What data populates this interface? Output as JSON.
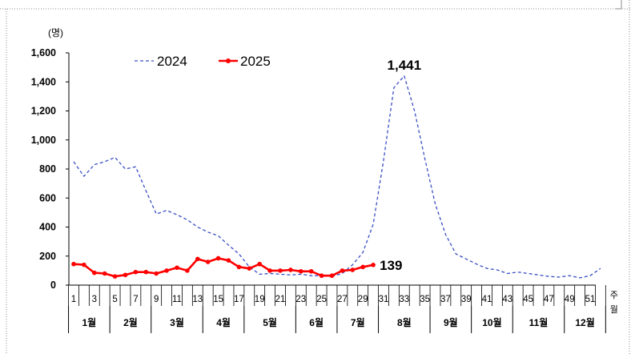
{
  "chart_data": {
    "type": "line",
    "y_unit_label": "(명)",
    "ylim": [
      0,
      1600
    ],
    "y_ticks": [
      "0",
      "200",
      "400",
      "600",
      "800",
      "1,000",
      "1,200",
      "1,400",
      "1,600"
    ],
    "x_ticks": [
      "1",
      "3",
      "5",
      "7",
      "9",
      "11",
      "13",
      "15",
      "17",
      "19",
      "21",
      "23",
      "25",
      "27",
      "29",
      "31",
      "33",
      "35",
      "37",
      "39",
      "41",
      "43",
      "45",
      "47",
      "49",
      "51"
    ],
    "x_axis_unit_vertical": "주",
    "month_axis_unit_vertical": "월",
    "months": [
      {
        "label": "1월",
        "start": 1,
        "end": 4
      },
      {
        "label": "2월",
        "start": 5,
        "end": 8
      },
      {
        "label": "3월",
        "start": 9,
        "end": 13
      },
      {
        "label": "4월",
        "start": 14,
        "end": 17
      },
      {
        "label": "5월",
        "start": 18,
        "end": 22
      },
      {
        "label": "6월",
        "start": 23,
        "end": 26
      },
      {
        "label": "7월",
        "start": 27,
        "end": 30
      },
      {
        "label": "8월",
        "start": 31,
        "end": 35
      },
      {
        "label": "9월",
        "start": 36,
        "end": 39
      },
      {
        "label": "10월",
        "start": 40,
        "end": 43
      },
      {
        "label": "11월",
        "start": 44,
        "end": 48
      },
      {
        "label": "12월",
        "start": 49,
        "end": 52
      }
    ],
    "grid": false,
    "legend_position": "top-left",
    "series": [
      {
        "name": "2024",
        "color": "#3a4fc4",
        "line_style": "dashed",
        "x": [
          1,
          2,
          3,
          4,
          5,
          6,
          7,
          8,
          9,
          10,
          11,
          12,
          13,
          14,
          15,
          16,
          17,
          18,
          19,
          20,
          21,
          22,
          23,
          24,
          25,
          26,
          27,
          28,
          29,
          30,
          31,
          32,
          33,
          34,
          35,
          36,
          37,
          38,
          39,
          40,
          41,
          42,
          43,
          44,
          45,
          46,
          47,
          48,
          49,
          50,
          51,
          52
        ],
        "values": [
          850,
          750,
          830,
          850,
          880,
          800,
          815,
          650,
          490,
          515,
          485,
          450,
          400,
          365,
          340,
          275,
          215,
          125,
          75,
          80,
          75,
          70,
          75,
          65,
          65,
          60,
          80,
          140,
          225,
          420,
          860,
          1360,
          1441,
          1200,
          870,
          560,
          350,
          215,
          180,
          145,
          115,
          105,
          80,
          90,
          80,
          70,
          60,
          55,
          65,
          50,
          65,
          115
        ]
      },
      {
        "name": "2025",
        "color": "#ff0000",
        "line_style": "solid",
        "marker": "circle",
        "x": [
          1,
          2,
          3,
          4,
          5,
          6,
          7,
          8,
          9,
          10,
          11,
          12,
          13,
          14,
          15,
          16,
          17,
          18,
          19,
          20,
          21,
          22,
          23,
          24,
          25,
          26,
          27,
          28,
          29,
          30
        ],
        "values": [
          145,
          140,
          85,
          80,
          60,
          70,
          90,
          90,
          80,
          100,
          120,
          100,
          180,
          160,
          185,
          170,
          125,
          115,
          145,
          100,
          100,
          105,
          95,
          95,
          65,
          65,
          100,
          105,
          125,
          139
        ]
      }
    ],
    "annotations": [
      {
        "text": "1,441",
        "series": "2024",
        "x": 33,
        "y": 1441
      },
      {
        "text": "139",
        "series": "2025",
        "x": 30,
        "y": 139
      }
    ]
  }
}
